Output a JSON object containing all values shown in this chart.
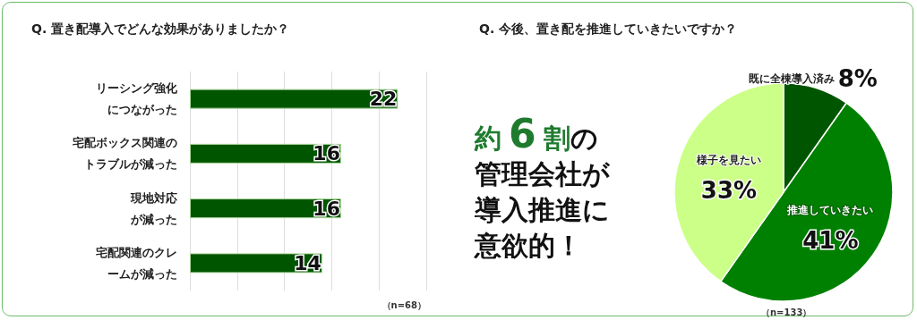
{
  "chart_data": [
    {
      "type": "bar",
      "orientation": "horizontal",
      "title": "Q. 置き配導入でどんな効果がありましたか？",
      "categories": [
        "リーシング強化につながった",
        "宅配ボックス関連のトラブルが減った",
        "現地対応が減った",
        "宅配関連のクレームが減った"
      ],
      "values": [
        22,
        16,
        16,
        14
      ],
      "color": "#005500",
      "xlim": [
        0,
        25
      ],
      "xticks": [
        {
          "value": 0,
          "label": null
        },
        {
          "value": 5,
          "label": null
        },
        {
          "value": 10,
          "label": null
        },
        {
          "value": 15,
          "label": null
        },
        {
          "value": 20,
          "label": null
        },
        {
          "value": 25,
          "label": null
        }
      ],
      "grid": "x",
      "data_labels": true,
      "annotations": [
        "（n=68）"
      ]
    },
    {
      "type": "other",
      "color": "#1e7b2e",
      "annotations": [
        "約",
        "6",
        "割",
        "の",
        "管理会社が",
        "導入推進に",
        "意欲的！"
      ]
    },
    {
      "type": "pie",
      "title": "Q. 今後、置き配を推進していきたいですか？",
      "categories": [
        "既に全棟導入済み",
        "推進していきたい",
        "様子を見たい"
      ],
      "values": [
        8,
        41,
        33
      ],
      "colors": [
        "#005500",
        "#008000",
        "#ccff88"
      ],
      "value_labels": [
        "8%",
        "41%",
        "33%"
      ],
      "annotations": [
        "（n=133）"
      ]
    }
  ]
}
